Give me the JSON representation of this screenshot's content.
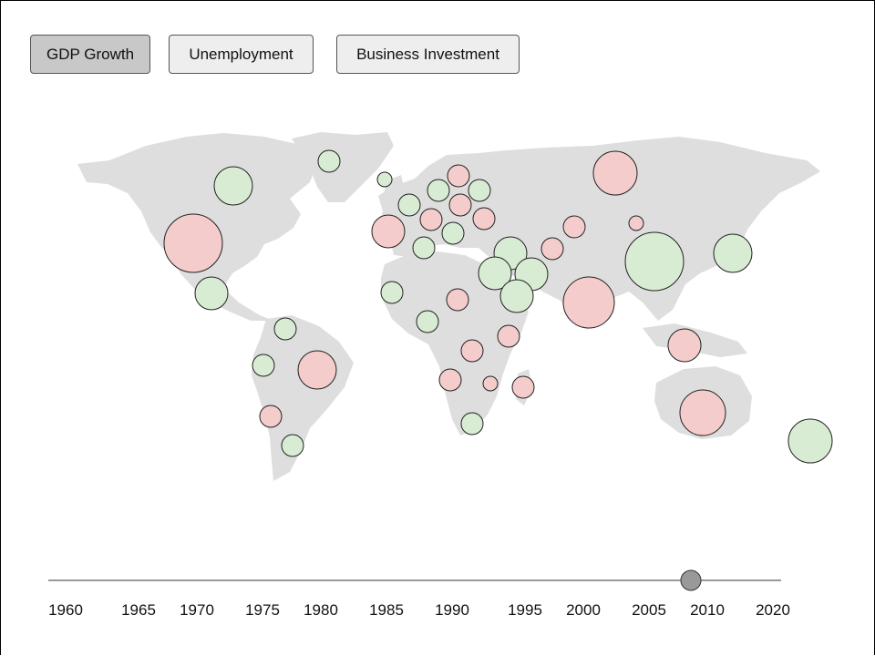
{
  "tabs": [
    {
      "label": "GDP Growth",
      "active": true
    },
    {
      "label": "Unemployment",
      "active": false
    },
    {
      "label": "Business Investment",
      "active": false
    }
  ],
  "colors": {
    "positive": "#d8ecd4",
    "negative": "#f4cccc",
    "land": "#dedede",
    "handle": "#999999"
  },
  "timeline": {
    "years": [
      "1960",
      "1965",
      "1970",
      "1975",
      "1980",
      "1985",
      "1990",
      "1995",
      "2000",
      "2005",
      "2010",
      "2020"
    ],
    "selected_year": 2009
  },
  "bubbles": [
    {
      "region": "greenland",
      "sign": "positive"
    },
    {
      "region": "canada",
      "sign": "positive"
    },
    {
      "region": "usa",
      "sign": "negative"
    },
    {
      "region": "mexico",
      "sign": "positive"
    },
    {
      "region": "colombia",
      "sign": "positive"
    },
    {
      "region": "peru",
      "sign": "positive"
    },
    {
      "region": "brazil",
      "sign": "negative"
    },
    {
      "region": "chile",
      "sign": "negative"
    },
    {
      "region": "argentina",
      "sign": "positive"
    },
    {
      "region": "iceland",
      "sign": "positive"
    },
    {
      "region": "uk",
      "sign": "positive"
    },
    {
      "region": "france",
      "sign": "negative"
    },
    {
      "region": "spain",
      "sign": "positive"
    },
    {
      "region": "germany",
      "sign": "negative"
    },
    {
      "region": "poland",
      "sign": "positive"
    },
    {
      "region": "sweden",
      "sign": "positive"
    },
    {
      "region": "finland",
      "sign": "negative"
    },
    {
      "region": "baltics",
      "sign": "negative"
    },
    {
      "region": "ukraine",
      "sign": "positive"
    },
    {
      "region": "romania",
      "sign": "negative"
    },
    {
      "region": "italy",
      "sign": "positive"
    },
    {
      "region": "turkey",
      "sign": "positive"
    },
    {
      "region": "iran",
      "sign": "negative"
    },
    {
      "region": "kazakhstan",
      "sign": "negative"
    },
    {
      "region": "russia",
      "sign": "negative"
    },
    {
      "region": "mongolia",
      "sign": "negative"
    },
    {
      "region": "china",
      "sign": "positive"
    },
    {
      "region": "japan",
      "sign": "positive"
    },
    {
      "region": "egypt",
      "sign": "positive"
    },
    {
      "region": "iraq",
      "sign": "positive"
    },
    {
      "region": "saudi-arabia",
      "sign": "positive"
    },
    {
      "region": "india",
      "sign": "negative"
    },
    {
      "region": "indonesia",
      "sign": "negative"
    },
    {
      "region": "australia",
      "sign": "negative"
    },
    {
      "region": "new-zealand",
      "sign": "positive"
    },
    {
      "region": "senegal",
      "sign": "positive"
    },
    {
      "region": "nigeria",
      "sign": "negative"
    },
    {
      "region": "chad",
      "sign": "negative"
    },
    {
      "region": "ethiopia",
      "sign": "negative"
    },
    {
      "region": "congo",
      "sign": "negative"
    },
    {
      "region": "angola",
      "sign": "negative"
    },
    {
      "region": "zambia",
      "sign": "negative"
    },
    {
      "region": "madagascar",
      "sign": "negative"
    },
    {
      "region": "south-africa",
      "sign": "positive"
    }
  ]
}
